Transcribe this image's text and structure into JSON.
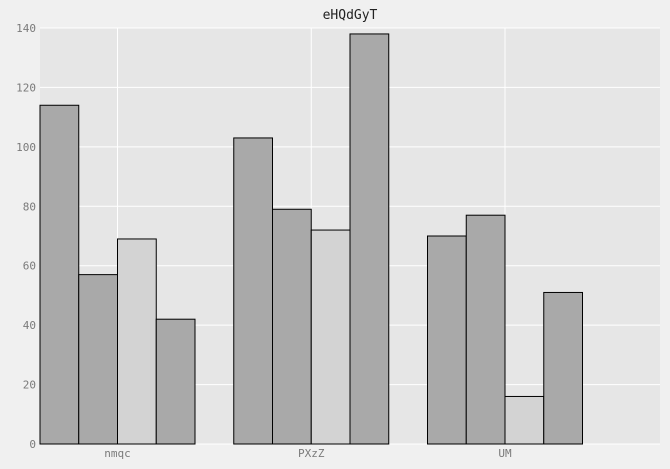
{
  "chart_data": {
    "type": "bar",
    "title": "eHQdGyT",
    "xlabel": "",
    "ylabel": "",
    "categories": [
      "nmqc",
      "PXzZ",
      "UM"
    ],
    "series": [
      {
        "values": [
          114,
          103,
          70
        ]
      },
      {
        "values": [
          57,
          79,
          77
        ]
      },
      {
        "values": [
          69,
          72,
          16
        ]
      },
      {
        "values": [
          42,
          138,
          51
        ]
      }
    ],
    "ylim": [
      0,
      140
    ],
    "yticks": [
      0,
      20,
      40,
      60,
      80,
      100,
      120,
      140
    ],
    "grid": true,
    "colors": {
      "plot_background": "#e6e6e6",
      "page_background": "#f0f0f0",
      "grid": "#ffffff",
      "bar_fill": [
        "#a9a9a9",
        "#a9a9a9",
        "#d3d3d3",
        "#a9a9a9"
      ],
      "bar_stroke": "#000000"
    }
  }
}
